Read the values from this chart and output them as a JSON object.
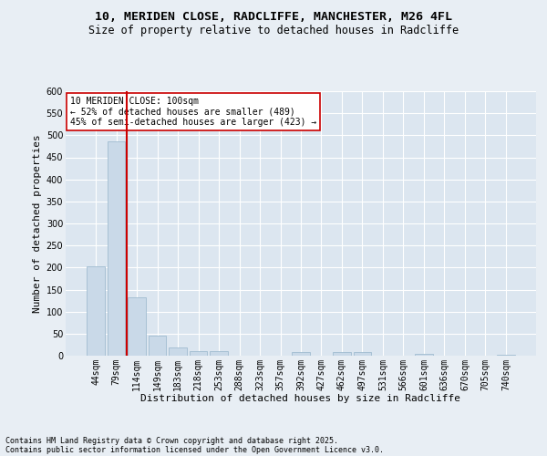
{
  "title1": "10, MERIDEN CLOSE, RADCLIFFE, MANCHESTER, M26 4FL",
  "title2": "Size of property relative to detached houses in Radcliffe",
  "xlabel": "Distribution of detached houses by size in Radcliffe",
  "ylabel": "Number of detached properties",
  "footer1": "Contains HM Land Registry data © Crown copyright and database right 2025.",
  "footer2": "Contains public sector information licensed under the Open Government Licence v3.0.",
  "categories": [
    "44sqm",
    "79sqm",
    "114sqm",
    "149sqm",
    "183sqm",
    "218sqm",
    "253sqm",
    "288sqm",
    "323sqm",
    "357sqm",
    "392sqm",
    "427sqm",
    "462sqm",
    "497sqm",
    "531sqm",
    "566sqm",
    "601sqm",
    "636sqm",
    "670sqm",
    "705sqm",
    "740sqm"
  ],
  "values": [
    203,
    487,
    133,
    45,
    18,
    11,
    10,
    0,
    0,
    0,
    8,
    0,
    8,
    9,
    0,
    0,
    4,
    0,
    0,
    0,
    3
  ],
  "bar_color": "#c9d9e8",
  "bar_edgecolor": "#a0bcd0",
  "red_line_color": "#cc0000",
  "annotation_text": "10 MERIDEN CLOSE: 100sqm\n← 52% of detached houses are smaller (489)\n45% of semi-detached houses are larger (423) →",
  "annotation_box_color": "#ffffff",
  "annotation_box_edgecolor": "#cc0000",
  "ylim": [
    0,
    600
  ],
  "yticks": [
    0,
    50,
    100,
    150,
    200,
    250,
    300,
    350,
    400,
    450,
    500,
    550,
    600
  ],
  "bg_color": "#e8eef4",
  "plot_bg_color": "#dce6f0",
  "grid_color": "#ffffff",
  "title_fontsize": 9.5,
  "subtitle_fontsize": 8.5,
  "axis_label_fontsize": 8,
  "tick_fontsize": 7,
  "annotation_fontsize": 7,
  "footer_fontsize": 6
}
